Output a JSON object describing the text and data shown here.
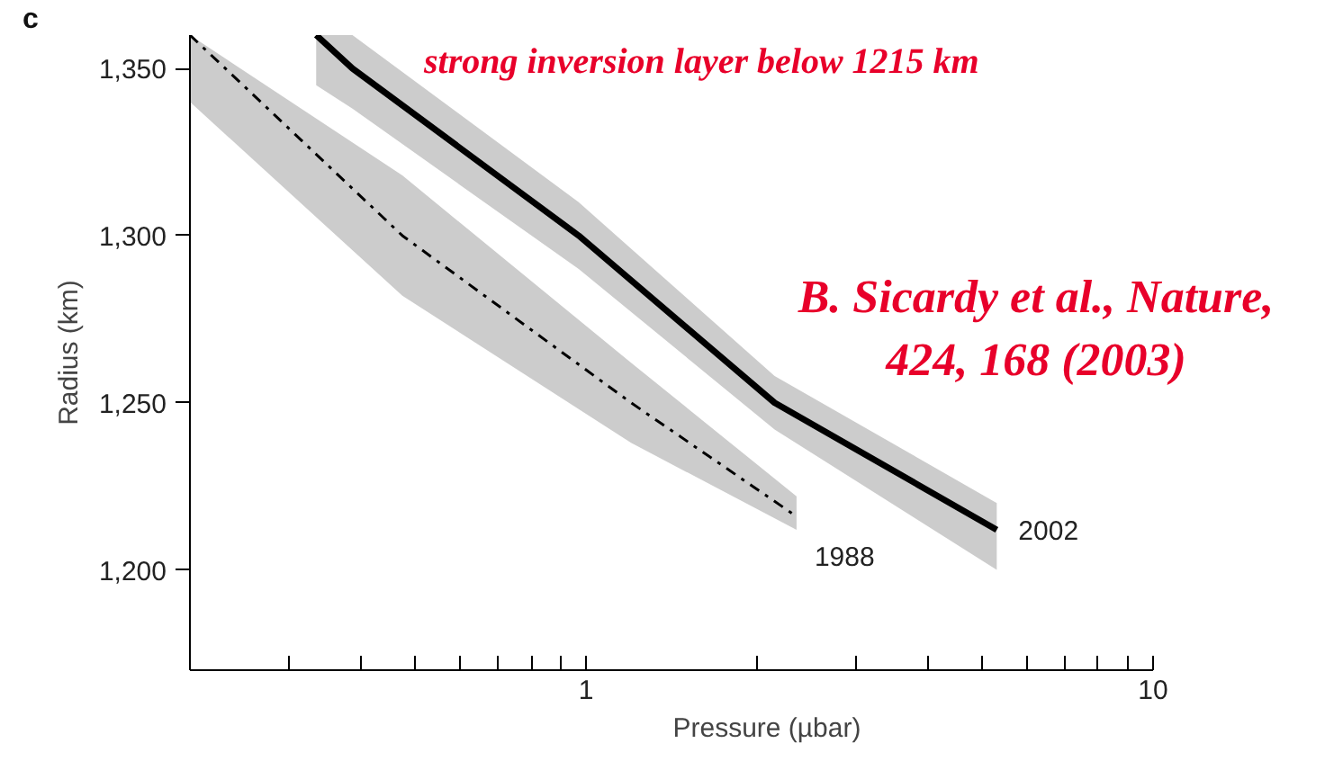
{
  "chart_data": {
    "type": "line",
    "title": "strong inversion layer below 1215 km",
    "xlabel": "Pressure (µbar)",
    "ylabel": "Radius (km)",
    "annotations": [
      "c",
      "B. Sicardy et al., Nature,\n424, 168 (2003)"
    ],
    "log": "x",
    "grid": false,
    "legend": false,
    "marker": "none",
    "xlim": [
      0.2,
      10
    ],
    "ylim": [
      1170,
      1360
    ],
    "xticks": [
      {
        "value": 0.3,
        "label": null
      },
      {
        "value": 0.4,
        "label": null
      },
      {
        "value": 0.5,
        "label": null
      },
      {
        "value": 0.6,
        "label": null
      },
      {
        "value": 0.7,
        "label": null
      },
      {
        "value": 0.8,
        "label": null
      },
      {
        "value": 0.9,
        "label": null
      },
      1,
      {
        "value": 2,
        "label": null
      },
      {
        "value": 3,
        "label": null
      },
      {
        "value": 4,
        "label": null
      },
      {
        "value": 5,
        "label": null
      },
      {
        "value": 6,
        "label": null
      },
      {
        "value": 7,
        "label": null
      },
      {
        "value": 8,
        "label": null
      },
      {
        "value": 9,
        "label": null
      },
      10
    ],
    "yticks": [
      {
        "value": 1200,
        "label": "1,200"
      },
      {
        "value": 1250,
        "label": "1,250"
      },
      {
        "value": 1300,
        "label": "1,300"
      },
      {
        "value": 1350,
        "label": "1,350"
      }
    ],
    "series": [
      {
        "name": "1988",
        "color": "#000000",
        "line_style": "dashdot",
        "x": [
          0.2,
          0.474,
          1.2,
          2.35
        ],
        "values": [
          1360,
          1300,
          1250,
          1216
        ],
        "lower": [
          1340,
          1282,
          1238,
          1212
        ],
        "upper": [
          1360,
          1318,
          1262,
          1222
        ]
      },
      {
        "name": "2002",
        "color": "#000000",
        "line_style": "solid",
        "x": [
          0.334,
          0.387,
          0.97,
          2.15,
          5.3
        ],
        "values": [
          1360,
          1350,
          1300,
          1250,
          1212
        ],
        "lower": [
          1345,
          1338,
          1290,
          1242,
          1200
        ],
        "upper": [
          1360,
          1360,
          1310,
          1258,
          1220
        ]
      }
    ]
  }
}
